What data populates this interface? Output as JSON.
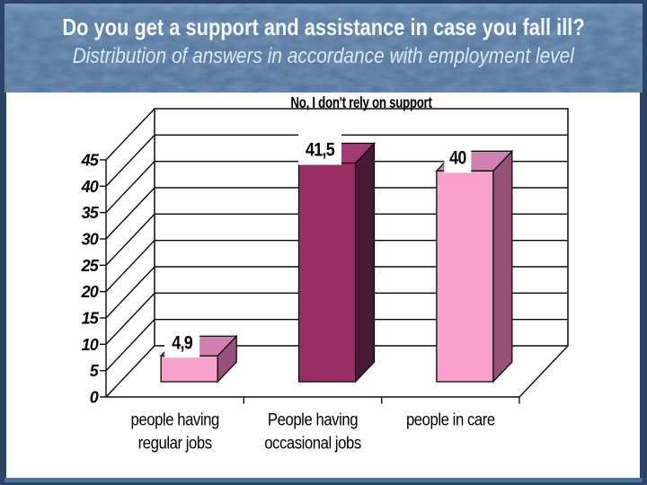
{
  "slide": {
    "title": "Do you get a support and assistance in case you fall ill?",
    "subtitle": "Distribution of answers in accordance with employment level",
    "colors": {
      "border": "#2B4568",
      "band": "#54779F",
      "panel": "#FFFFFF",
      "bottom_strip": "#4C7097",
      "title_text": "#F2F8FE",
      "subtitle_text": "#DAE7F4"
    }
  },
  "chart_data": {
    "type": "bar",
    "projection": "3d",
    "title": "No, I don't rely on support",
    "categories": [
      "people having regular jobs",
      "People having occasional jobs",
      "people in care"
    ],
    "category_lines": [
      [
        "people having",
        "regular jobs"
      ],
      [
        "People having",
        "occasional jobs"
      ],
      [
        "people in care"
      ]
    ],
    "values": [
      4.9,
      41.5,
      40
    ],
    "value_labels": [
      "4,9",
      "41,5",
      "40"
    ],
    "ylim": [
      0,
      45
    ],
    "ytick_step": 5,
    "ytick_labels": [
      "0",
      "5",
      "10",
      "15",
      "20",
      "25",
      "30",
      "35",
      "40",
      "45"
    ],
    "grid": true,
    "legend": false,
    "line_color": "#0A0A0A",
    "text_color": "#000000",
    "bar_colors": [
      {
        "front": "#F99FCC",
        "top": "#D180AF",
        "side": "#97527A"
      },
      {
        "front": "#9A2F66",
        "top": "#A53B74",
        "side": "#481A37"
      },
      {
        "front": "#F99FCC",
        "top": "#D180AF",
        "side": "#97527A"
      }
    ]
  }
}
